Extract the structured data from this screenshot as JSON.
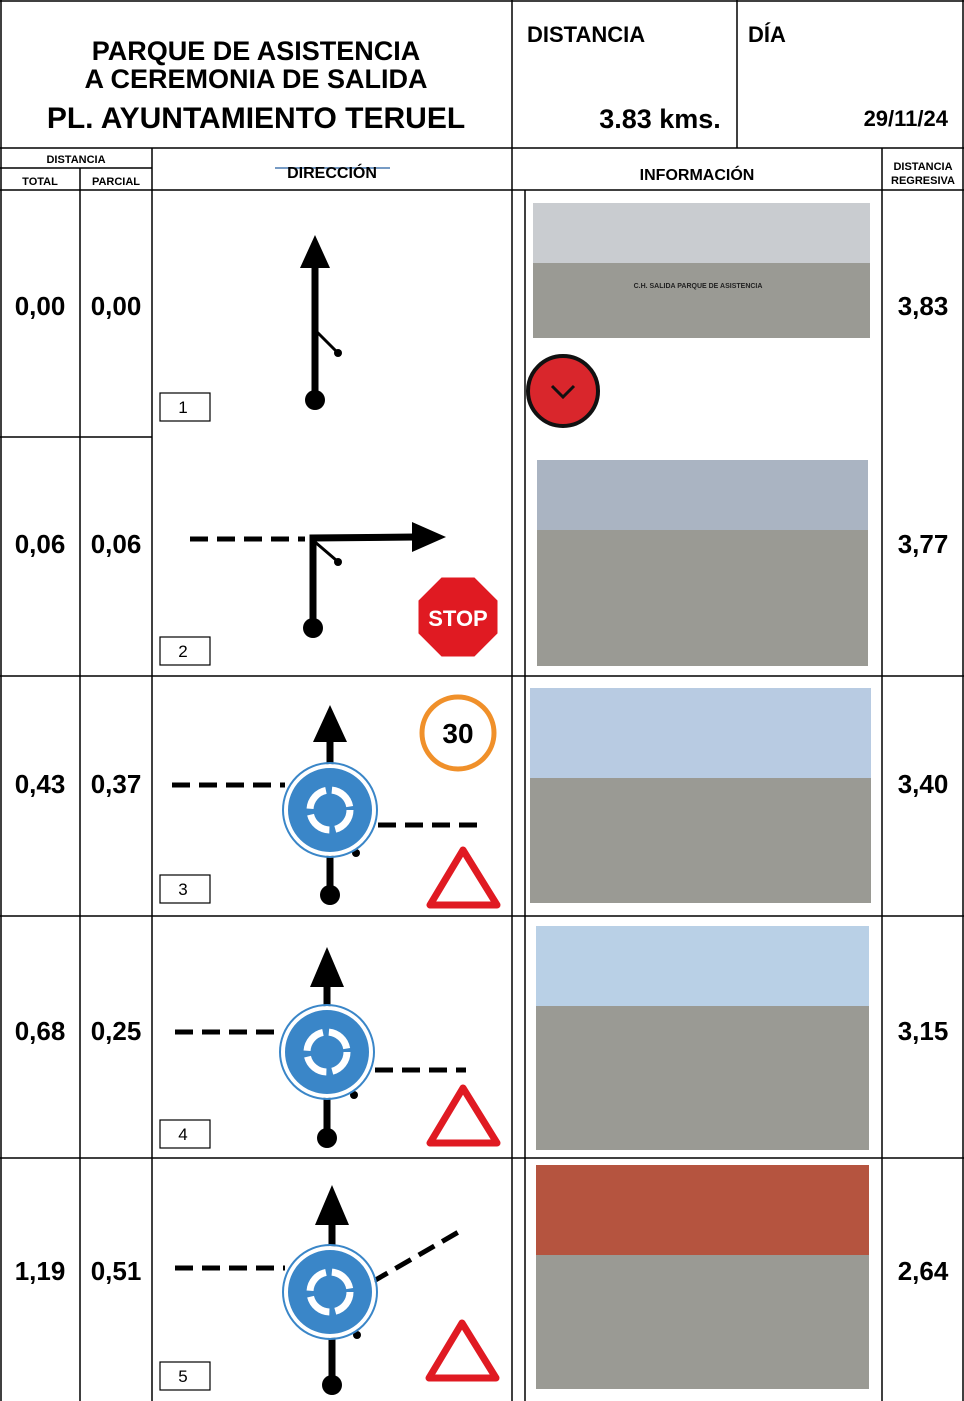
{
  "header": {
    "title": [
      "PARQUE DE ASISTENCIA",
      "A CEREMONIA DE SALIDA",
      "PL. AYUNTAMIENTO TERUEL"
    ],
    "distance_label": "DISTANCIA",
    "distance": "3.83 kms.",
    "day_label": "DÍA",
    "day": "29/11/24"
  },
  "columns": {
    "distance": "DISTANCIA",
    "total": "TOTAL",
    "partial": "PARCIAL",
    "direction": "DIRECCIÓN",
    "information": "INFORMACIÓN",
    "regressive": [
      "DISTANCIA",
      "REGRESIVA"
    ]
  },
  "rows": [
    {
      "number": "1",
      "total": "0,00",
      "partial": "0,00",
      "regressive": "3,83",
      "photo_caption": "C.H. SALIDA PARQUE DE ASISTENCIA"
    },
    {
      "number": "2",
      "total": "0,06",
      "partial": "0,06",
      "regressive": "3,77",
      "sign": "STOP"
    },
    {
      "number": "3",
      "total": "0,43",
      "partial": "0,37",
      "regressive": "3,40",
      "sign": "30"
    },
    {
      "number": "4",
      "total": "0,68",
      "partial": "0,25",
      "regressive": "3,15"
    },
    {
      "number": "5",
      "total": "1,19",
      "partial": "0,51",
      "regressive": "2,64"
    }
  ]
}
